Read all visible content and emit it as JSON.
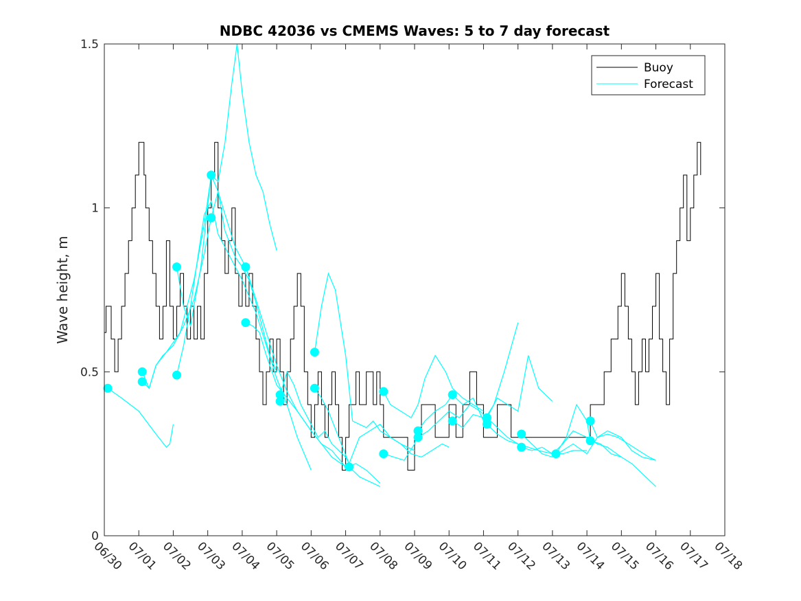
{
  "chart_data": {
    "type": "line",
    "title": "NDBC 42036 vs CMEMS Waves: 5 to 7 day forecast",
    "xlabel": "",
    "ylabel": "Wave height, m",
    "xlim": [
      0,
      18
    ],
    "ylim": [
      0,
      1.5
    ],
    "grid": false,
    "legend_position": "top-right",
    "x_tick_values": [
      0,
      1,
      2,
      3,
      4,
      5,
      6,
      7,
      8,
      9,
      10,
      11,
      12,
      13,
      14,
      15,
      16,
      17,
      18
    ],
    "x_tick_labels": [
      "06/30",
      "07/01",
      "07/02",
      "07/03",
      "07/04",
      "07/05",
      "07/06",
      "07/07",
      "07/08",
      "07/09",
      "07/10",
      "07/11",
      "07/12",
      "07/13",
      "07/14",
      "07/15",
      "07/16",
      "07/17",
      "07/18"
    ],
    "y_tick_values": [
      0,
      0.5,
      1,
      1.5
    ],
    "y_tick_labels": [
      "0",
      "0.5",
      "1",
      "1.5"
    ],
    "colors": {
      "buoy": "#000000",
      "forecast": "#00ffff"
    },
    "legend": [
      {
        "name": "Buoy",
        "color": "#000000"
      },
      {
        "name": "Forecast",
        "color": "#00ffff"
      }
    ],
    "buoy": {
      "name": "Buoy",
      "x": [
        0,
        0.05,
        0.1,
        0.2,
        0.3,
        0.4,
        0.5,
        0.6,
        0.7,
        0.8,
        0.9,
        1.0,
        1.1,
        1.15,
        1.2,
        1.3,
        1.4,
        1.5,
        1.6,
        1.7,
        1.8,
        1.9,
        2.0,
        2.1,
        2.2,
        2.3,
        2.4,
        2.5,
        2.6,
        2.7,
        2.8,
        2.9,
        3.0,
        3.1,
        3.2,
        3.3,
        3.4,
        3.5,
        3.6,
        3.7,
        3.8,
        3.9,
        4.0,
        4.1,
        4.2,
        4.3,
        4.4,
        4.5,
        4.6,
        4.7,
        4.8,
        4.9,
        5.0,
        5.1,
        5.2,
        5.3,
        5.4,
        5.5,
        5.6,
        5.7,
        5.8,
        5.9,
        6.0,
        6.1,
        6.2,
        6.3,
        6.4,
        6.5,
        6.6,
        6.7,
        6.8,
        6.9,
        7.0,
        7.1,
        7.2,
        7.3,
        7.4,
        7.5,
        7.6,
        7.7,
        7.8,
        7.9,
        8.0,
        8.1,
        8.2,
        8.4,
        8.6,
        8.8,
        9.0,
        9.2,
        9.4,
        9.6,
        9.8,
        10.0,
        10.2,
        10.4,
        10.6,
        10.8,
        11.0,
        11.2,
        11.4,
        11.6,
        11.8,
        12.0,
        12.5,
        13.0,
        13.5,
        14.0,
        14.1,
        14.3,
        14.5,
        14.7,
        14.9,
        15.0,
        15.1,
        15.2,
        15.3,
        15.4,
        15.5,
        15.6,
        15.7,
        15.8,
        15.9,
        16.0,
        16.1,
        16.2,
        16.3,
        16.4,
        16.5,
        16.6,
        16.7,
        16.8,
        16.9,
        17.0,
        17.1,
        17.2,
        17.3
      ],
      "y": [
        0.62,
        0.7,
        0.7,
        0.6,
        0.5,
        0.6,
        0.7,
        0.8,
        0.9,
        1.0,
        1.1,
        1.2,
        1.2,
        1.1,
        1.0,
        0.9,
        0.8,
        0.7,
        0.6,
        0.7,
        0.9,
        0.7,
        0.6,
        0.7,
        0.8,
        0.7,
        0.6,
        0.7,
        0.6,
        0.7,
        0.6,
        0.8,
        1.0,
        1.1,
        1.2,
        1.0,
        0.9,
        0.8,
        0.9,
        1.0,
        0.8,
        0.7,
        0.8,
        0.7,
        0.8,
        0.7,
        0.6,
        0.5,
        0.4,
        0.5,
        0.6,
        0.5,
        0.6,
        0.5,
        0.4,
        0.5,
        0.6,
        0.7,
        0.8,
        0.7,
        0.5,
        0.4,
        0.3,
        0.4,
        0.5,
        0.4,
        0.3,
        0.4,
        0.5,
        0.4,
        0.3,
        0.2,
        0.3,
        0.4,
        0.4,
        0.5,
        0.4,
        0.4,
        0.5,
        0.5,
        0.4,
        0.5,
        0.4,
        0.3,
        0.3,
        0.3,
        0.3,
        0.2,
        0.3,
        0.4,
        0.4,
        0.3,
        0.3,
        0.4,
        0.3,
        0.4,
        0.5,
        0.4,
        0.3,
        0.3,
        0.4,
        0.4,
        0.3,
        0.3,
        0.3,
        0.3,
        0.3,
        0.3,
        0.4,
        0.4,
        0.5,
        0.6,
        0.7,
        0.8,
        0.7,
        0.6,
        0.5,
        0.4,
        0.5,
        0.6,
        0.5,
        0.6,
        0.7,
        0.8,
        0.6,
        0.5,
        0.4,
        0.6,
        0.8,
        0.9,
        1.0,
        1.1,
        0.9,
        1.0,
        1.1,
        1.2,
        1.1
      ]
    },
    "forecast": [
      {
        "name": "Forecast",
        "x": [
          0.1,
          0.5,
          1.0,
          1.5,
          1.8,
          1.9,
          2.0
        ],
        "y": [
          0.45,
          0.42,
          0.38,
          0.31,
          0.27,
          0.28,
          0.34
        ]
      },
      {
        "name": "Forecast",
        "x": [
          1.1,
          1.3,
          1.5,
          1.8,
          2.2,
          2.6,
          2.9,
          3.1,
          3.3,
          3.5,
          3.7,
          3.85,
          4.0,
          4.2,
          4.4,
          4.6,
          4.8,
          5.0
        ],
        "y": [
          0.5,
          0.45,
          0.52,
          0.56,
          0.62,
          0.78,
          0.95,
          1.1,
          1.08,
          1.2,
          1.38,
          1.5,
          1.35,
          1.2,
          1.1,
          1.05,
          0.95,
          0.87
        ]
      },
      {
        "name": "Forecast",
        "x": [
          1.1,
          1.3,
          1.5,
          1.7,
          2.0,
          2.3,
          2.6,
          2.9,
          3.1,
          3.3,
          3.5,
          3.8,
          4.0,
          4.2,
          4.4,
          4.6,
          4.8,
          5.0
        ],
        "y": [
          0.47,
          0.45,
          0.52,
          0.55,
          0.58,
          0.64,
          0.72,
          0.86,
          0.97,
          1.05,
          0.93,
          0.85,
          0.82,
          0.78,
          0.71,
          0.63,
          0.55,
          0.5
        ]
      },
      {
        "name": "Forecast",
        "x": [
          2.1,
          2.3,
          2.5,
          2.7,
          2.9,
          3.1,
          3.3,
          3.5,
          3.7,
          4.0,
          4.2,
          4.4,
          4.7,
          5.0,
          5.3,
          5.6,
          6.0
        ],
        "y": [
          0.49,
          0.58,
          0.7,
          0.84,
          0.98,
          1.02,
          0.92,
          0.88,
          0.84,
          0.78,
          0.73,
          0.68,
          0.58,
          0.48,
          0.4,
          0.3,
          0.2
        ]
      },
      {
        "name": "Forecast",
        "x": [
          2.1,
          2.3,
          2.5,
          2.8,
          3.1,
          3.3,
          3.5,
          3.8,
          4.1,
          4.4,
          4.7,
          5.0,
          5.3,
          5.6,
          6.0,
          6.3,
          6.6,
          7.0
        ],
        "y": [
          0.82,
          0.7,
          0.64,
          0.82,
          1.1,
          1.05,
          0.98,
          0.88,
          0.82,
          0.72,
          0.62,
          0.52,
          0.44,
          0.38,
          0.32,
          0.28,
          0.24,
          0.21
        ]
      },
      {
        "name": "Forecast",
        "x": [
          4.1,
          4.3,
          4.5,
          4.7,
          5.0,
          5.3,
          5.6,
          6.0,
          6.3,
          6.6,
          7.0,
          7.3,
          7.6,
          8.0
        ],
        "y": [
          0.65,
          0.64,
          0.62,
          0.55,
          0.46,
          0.42,
          0.38,
          0.32,
          0.28,
          0.26,
          0.21,
          0.22,
          0.2,
          0.16
        ]
      },
      {
        "name": "Forecast",
        "x": [
          5.1,
          5.3,
          5.5,
          5.7,
          6.0,
          6.2,
          6.4,
          6.6,
          6.8,
          7.0,
          7.2,
          7.4,
          7.6,
          7.8,
          8.0
        ],
        "y": [
          0.43,
          0.5,
          0.46,
          0.4,
          0.34,
          0.3,
          0.32,
          0.28,
          0.26,
          0.24,
          0.2,
          0.18,
          0.17,
          0.16,
          0.15
        ]
      },
      {
        "name": "Forecast",
        "x": [
          6.1,
          6.3,
          6.5,
          6.7,
          7.0,
          7.2,
          7.4,
          7.6,
          7.8,
          8.0,
          8.3,
          8.6,
          9.0
        ],
        "y": [
          0.56,
          0.7,
          0.8,
          0.75,
          0.55,
          0.35,
          0.34,
          0.33,
          0.35,
          0.32,
          0.3,
          0.28,
          0.26
        ]
      },
      {
        "name": "Forecast",
        "x": [
          6.1,
          6.3,
          6.5,
          6.8,
          7.1,
          7.4,
          7.7,
          8.0,
          8.3,
          8.6,
          8.9,
          9.2,
          9.5,
          9.8,
          10.0
        ],
        "y": [
          0.45,
          0.42,
          0.38,
          0.3,
          0.22,
          0.3,
          0.32,
          0.34,
          0.3,
          0.28,
          0.25,
          0.24,
          0.26,
          0.28,
          0.27
        ]
      },
      {
        "name": "Forecast",
        "x": [
          8.1,
          8.3,
          8.6,
          8.9,
          9.1,
          9.3,
          9.6,
          9.9,
          10.1,
          10.4,
          10.7,
          11.0
        ],
        "y": [
          0.44,
          0.4,
          0.38,
          0.36,
          0.4,
          0.48,
          0.55,
          0.5,
          0.45,
          0.42,
          0.4,
          0.38
        ]
      },
      {
        "name": "Forecast",
        "x": [
          8.1,
          8.4,
          8.7,
          9.0,
          9.1,
          9.3,
          9.6,
          9.9,
          10.1,
          10.4,
          10.7,
          11.0,
          11.3,
          11.6,
          12.0
        ],
        "y": [
          0.25,
          0.24,
          0.23,
          0.28,
          0.32,
          0.35,
          0.38,
          0.4,
          0.43,
          0.4,
          0.42,
          0.35,
          0.4,
          0.5,
          0.65
        ]
      },
      {
        "name": "Forecast",
        "x": [
          9.1,
          9.4,
          9.7,
          10.0,
          10.3,
          10.6,
          10.9,
          11.1,
          11.4,
          11.7,
          12.0,
          12.3,
          12.6,
          13.0
        ],
        "y": [
          0.3,
          0.32,
          0.35,
          0.38,
          0.36,
          0.4,
          0.38,
          0.36,
          0.42,
          0.4,
          0.38,
          0.55,
          0.45,
          0.41
        ]
      },
      {
        "name": "Forecast",
        "x": [
          10.1,
          10.4,
          10.7,
          11.0,
          11.1,
          11.4,
          11.7,
          12.0,
          12.3,
          12.6,
          13.0,
          13.3,
          13.6,
          14.0
        ],
        "y": [
          0.35,
          0.33,
          0.37,
          0.36,
          0.34,
          0.31,
          0.29,
          0.28,
          0.27,
          0.26,
          0.25,
          0.25,
          0.26,
          0.26
        ]
      },
      {
        "name": "Forecast",
        "x": [
          11.1,
          11.4,
          11.7,
          12.0,
          12.1,
          12.4,
          12.7,
          13.0,
          13.3,
          13.6,
          14.0,
          14.3,
          14.6,
          15.0
        ],
        "y": [
          0.36,
          0.33,
          0.3,
          0.28,
          0.27,
          0.26,
          0.27,
          0.25,
          0.28,
          0.32,
          0.3,
          0.28,
          0.27,
          0.24
        ]
      },
      {
        "name": "Forecast",
        "x": [
          12.1,
          12.4,
          12.7,
          13.0,
          13.3,
          13.6,
          14.0,
          14.3,
          14.6,
          15.0,
          15.3,
          15.6,
          16.0
        ],
        "y": [
          0.31,
          0.28,
          0.25,
          0.24,
          0.26,
          0.28,
          0.25,
          0.3,
          0.32,
          0.3,
          0.26,
          0.24,
          0.23
        ]
      },
      {
        "name": "Forecast",
        "x": [
          13.1,
          13.4,
          13.7,
          14.0,
          14.1,
          14.4,
          14.7,
          15.0,
          15.3,
          15.6,
          16.0
        ],
        "y": [
          0.25,
          0.3,
          0.4,
          0.35,
          0.29,
          0.28,
          0.25,
          0.24,
          0.22,
          0.19,
          0.15
        ]
      },
      {
        "name": "Forecast",
        "x": [
          14.1,
          14.3,
          14.6,
          14.9,
          15.2,
          15.5,
          15.8,
          16.0
        ],
        "y": [
          0.35,
          0.3,
          0.31,
          0.3,
          0.28,
          0.26,
          0.24,
          0.23
        ]
      }
    ],
    "forecast_markers": {
      "x": [
        0.1,
        1.1,
        1.1,
        2.1,
        2.1,
        3.1,
        3.1,
        4.1,
        4.1,
        5.1,
        5.1,
        6.1,
        6.1,
        7.1,
        8.1,
        8.1,
        9.1,
        9.1,
        10.1,
        10.1,
        11.1,
        11.1,
        12.1,
        12.1,
        13.1,
        14.1,
        14.1
      ],
      "y": [
        0.45,
        0.5,
        0.47,
        0.82,
        0.49,
        1.1,
        0.97,
        0.82,
        0.65,
        0.43,
        0.41,
        0.56,
        0.45,
        0.21,
        0.44,
        0.25,
        0.32,
        0.3,
        0.43,
        0.35,
        0.36,
        0.34,
        0.31,
        0.27,
        0.25,
        0.35,
        0.29
      ]
    }
  }
}
